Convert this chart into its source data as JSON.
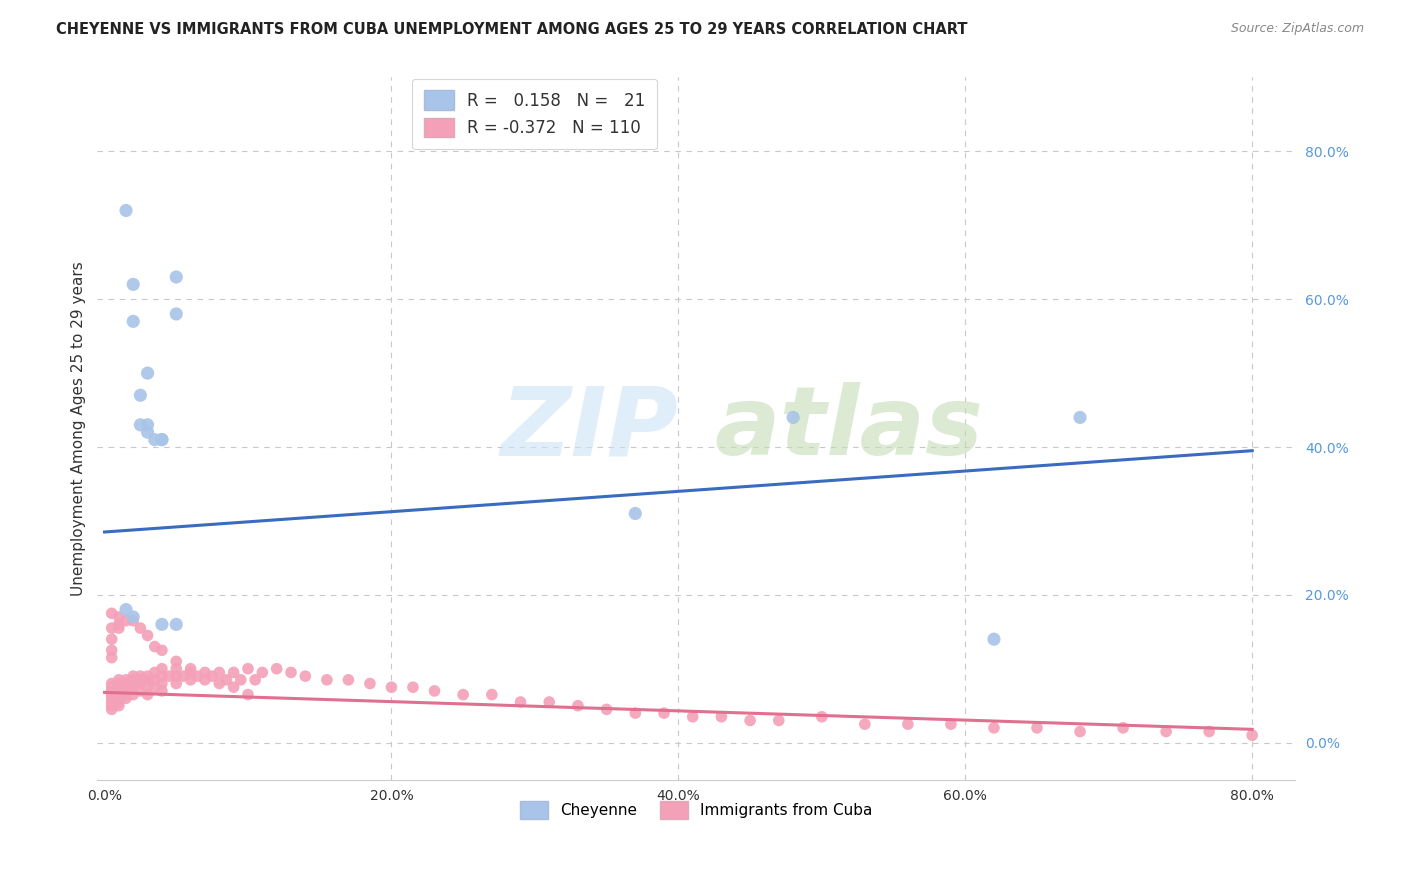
{
  "title": "CHEYENNE VS IMMIGRANTS FROM CUBA UNEMPLOYMENT AMONG AGES 25 TO 29 YEARS CORRELATION CHART",
  "source": "Source: ZipAtlas.com",
  "ylabel": "Unemployment Among Ages 25 to 29 years",
  "legend_blue_r": "0.158",
  "legend_blue_n": "21",
  "legend_pink_r": "-0.372",
  "legend_pink_n": "110",
  "blue_color": "#a8c4e8",
  "pink_color": "#f4a0b8",
  "blue_line_color": "#3a6bbf",
  "pink_line_color": "#e07090",
  "blue_scatter_x": [
    0.015,
    0.02,
    0.02,
    0.025,
    0.03,
    0.03,
    0.04,
    0.04,
    0.015,
    0.02,
    0.025,
    0.03,
    0.035,
    0.04,
    0.05,
    0.37,
    0.48,
    0.62,
    0.68,
    0.05,
    0.05
  ],
  "blue_scatter_y": [
    0.72,
    0.62,
    0.57,
    0.47,
    0.43,
    0.42,
    0.41,
    0.16,
    0.18,
    0.17,
    0.43,
    0.5,
    0.41,
    0.41,
    0.16,
    0.31,
    0.44,
    0.14,
    0.44,
    0.63,
    0.58
  ],
  "pink_scatter_x": [
    0.005,
    0.005,
    0.005,
    0.005,
    0.005,
    0.005,
    0.005,
    0.005,
    0.01,
    0.01,
    0.01,
    0.01,
    0.01,
    0.01,
    0.01,
    0.01,
    0.015,
    0.015,
    0.015,
    0.015,
    0.015,
    0.02,
    0.02,
    0.02,
    0.02,
    0.02,
    0.025,
    0.025,
    0.025,
    0.025,
    0.03,
    0.03,
    0.03,
    0.03,
    0.035,
    0.035,
    0.035,
    0.04,
    0.04,
    0.04,
    0.04,
    0.045,
    0.05,
    0.05,
    0.05,
    0.055,
    0.06,
    0.06,
    0.065,
    0.07,
    0.075,
    0.08,
    0.085,
    0.09,
    0.095,
    0.1,
    0.105,
    0.11,
    0.12,
    0.13,
    0.14,
    0.155,
    0.17,
    0.185,
    0.2,
    0.215,
    0.23,
    0.25,
    0.27,
    0.29,
    0.31,
    0.33,
    0.35,
    0.37,
    0.39,
    0.41,
    0.43,
    0.45,
    0.47,
    0.5,
    0.53,
    0.56,
    0.59,
    0.62,
    0.65,
    0.68,
    0.71,
    0.74,
    0.77,
    0.8,
    0.005,
    0.005,
    0.005,
    0.005,
    0.005,
    0.01,
    0.01,
    0.01,
    0.015,
    0.02,
    0.025,
    0.03,
    0.035,
    0.04,
    0.05,
    0.06,
    0.07,
    0.08,
    0.09,
    0.1
  ],
  "pink_scatter_y": [
    0.08,
    0.075,
    0.07,
    0.065,
    0.06,
    0.055,
    0.05,
    0.045,
    0.085,
    0.08,
    0.075,
    0.07,
    0.065,
    0.06,
    0.055,
    0.05,
    0.085,
    0.08,
    0.07,
    0.065,
    0.06,
    0.09,
    0.085,
    0.08,
    0.075,
    0.065,
    0.09,
    0.085,
    0.08,
    0.07,
    0.09,
    0.085,
    0.075,
    0.065,
    0.095,
    0.085,
    0.075,
    0.1,
    0.09,
    0.08,
    0.07,
    0.09,
    0.1,
    0.09,
    0.08,
    0.09,
    0.1,
    0.085,
    0.09,
    0.095,
    0.09,
    0.095,
    0.085,
    0.095,
    0.085,
    0.1,
    0.085,
    0.095,
    0.1,
    0.095,
    0.09,
    0.085,
    0.085,
    0.08,
    0.075,
    0.075,
    0.07,
    0.065,
    0.065,
    0.055,
    0.055,
    0.05,
    0.045,
    0.04,
    0.04,
    0.035,
    0.035,
    0.03,
    0.03,
    0.035,
    0.025,
    0.025,
    0.025,
    0.02,
    0.02,
    0.015,
    0.02,
    0.015,
    0.015,
    0.01,
    0.175,
    0.155,
    0.14,
    0.125,
    0.115,
    0.17,
    0.16,
    0.155,
    0.165,
    0.165,
    0.155,
    0.145,
    0.13,
    0.125,
    0.11,
    0.095,
    0.085,
    0.08,
    0.075,
    0.065
  ],
  "blue_trend_x": [
    0.0,
    0.8
  ],
  "blue_trend_y": [
    0.285,
    0.395
  ],
  "pink_trend_x": [
    0.0,
    0.8
  ],
  "pink_trend_y": [
    0.068,
    0.018
  ],
  "xlim": [
    -0.005,
    0.83
  ],
  "ylim": [
    -0.05,
    0.9
  ],
  "xticks": [
    0.0,
    0.2,
    0.4,
    0.6,
    0.8
  ],
  "xtick_labels": [
    "0.0%",
    "20.0%",
    "40.0%",
    "60.0%",
    "80.0%"
  ],
  "yticks_right": [
    0.0,
    0.2,
    0.4,
    0.6,
    0.8
  ],
  "ytick_labels_right": [
    "0.0%",
    "20.0%",
    "40.0%",
    "60.0%",
    "80.0%"
  ],
  "bg_color": "#ffffff",
  "grid_color": "#c8c8c8"
}
